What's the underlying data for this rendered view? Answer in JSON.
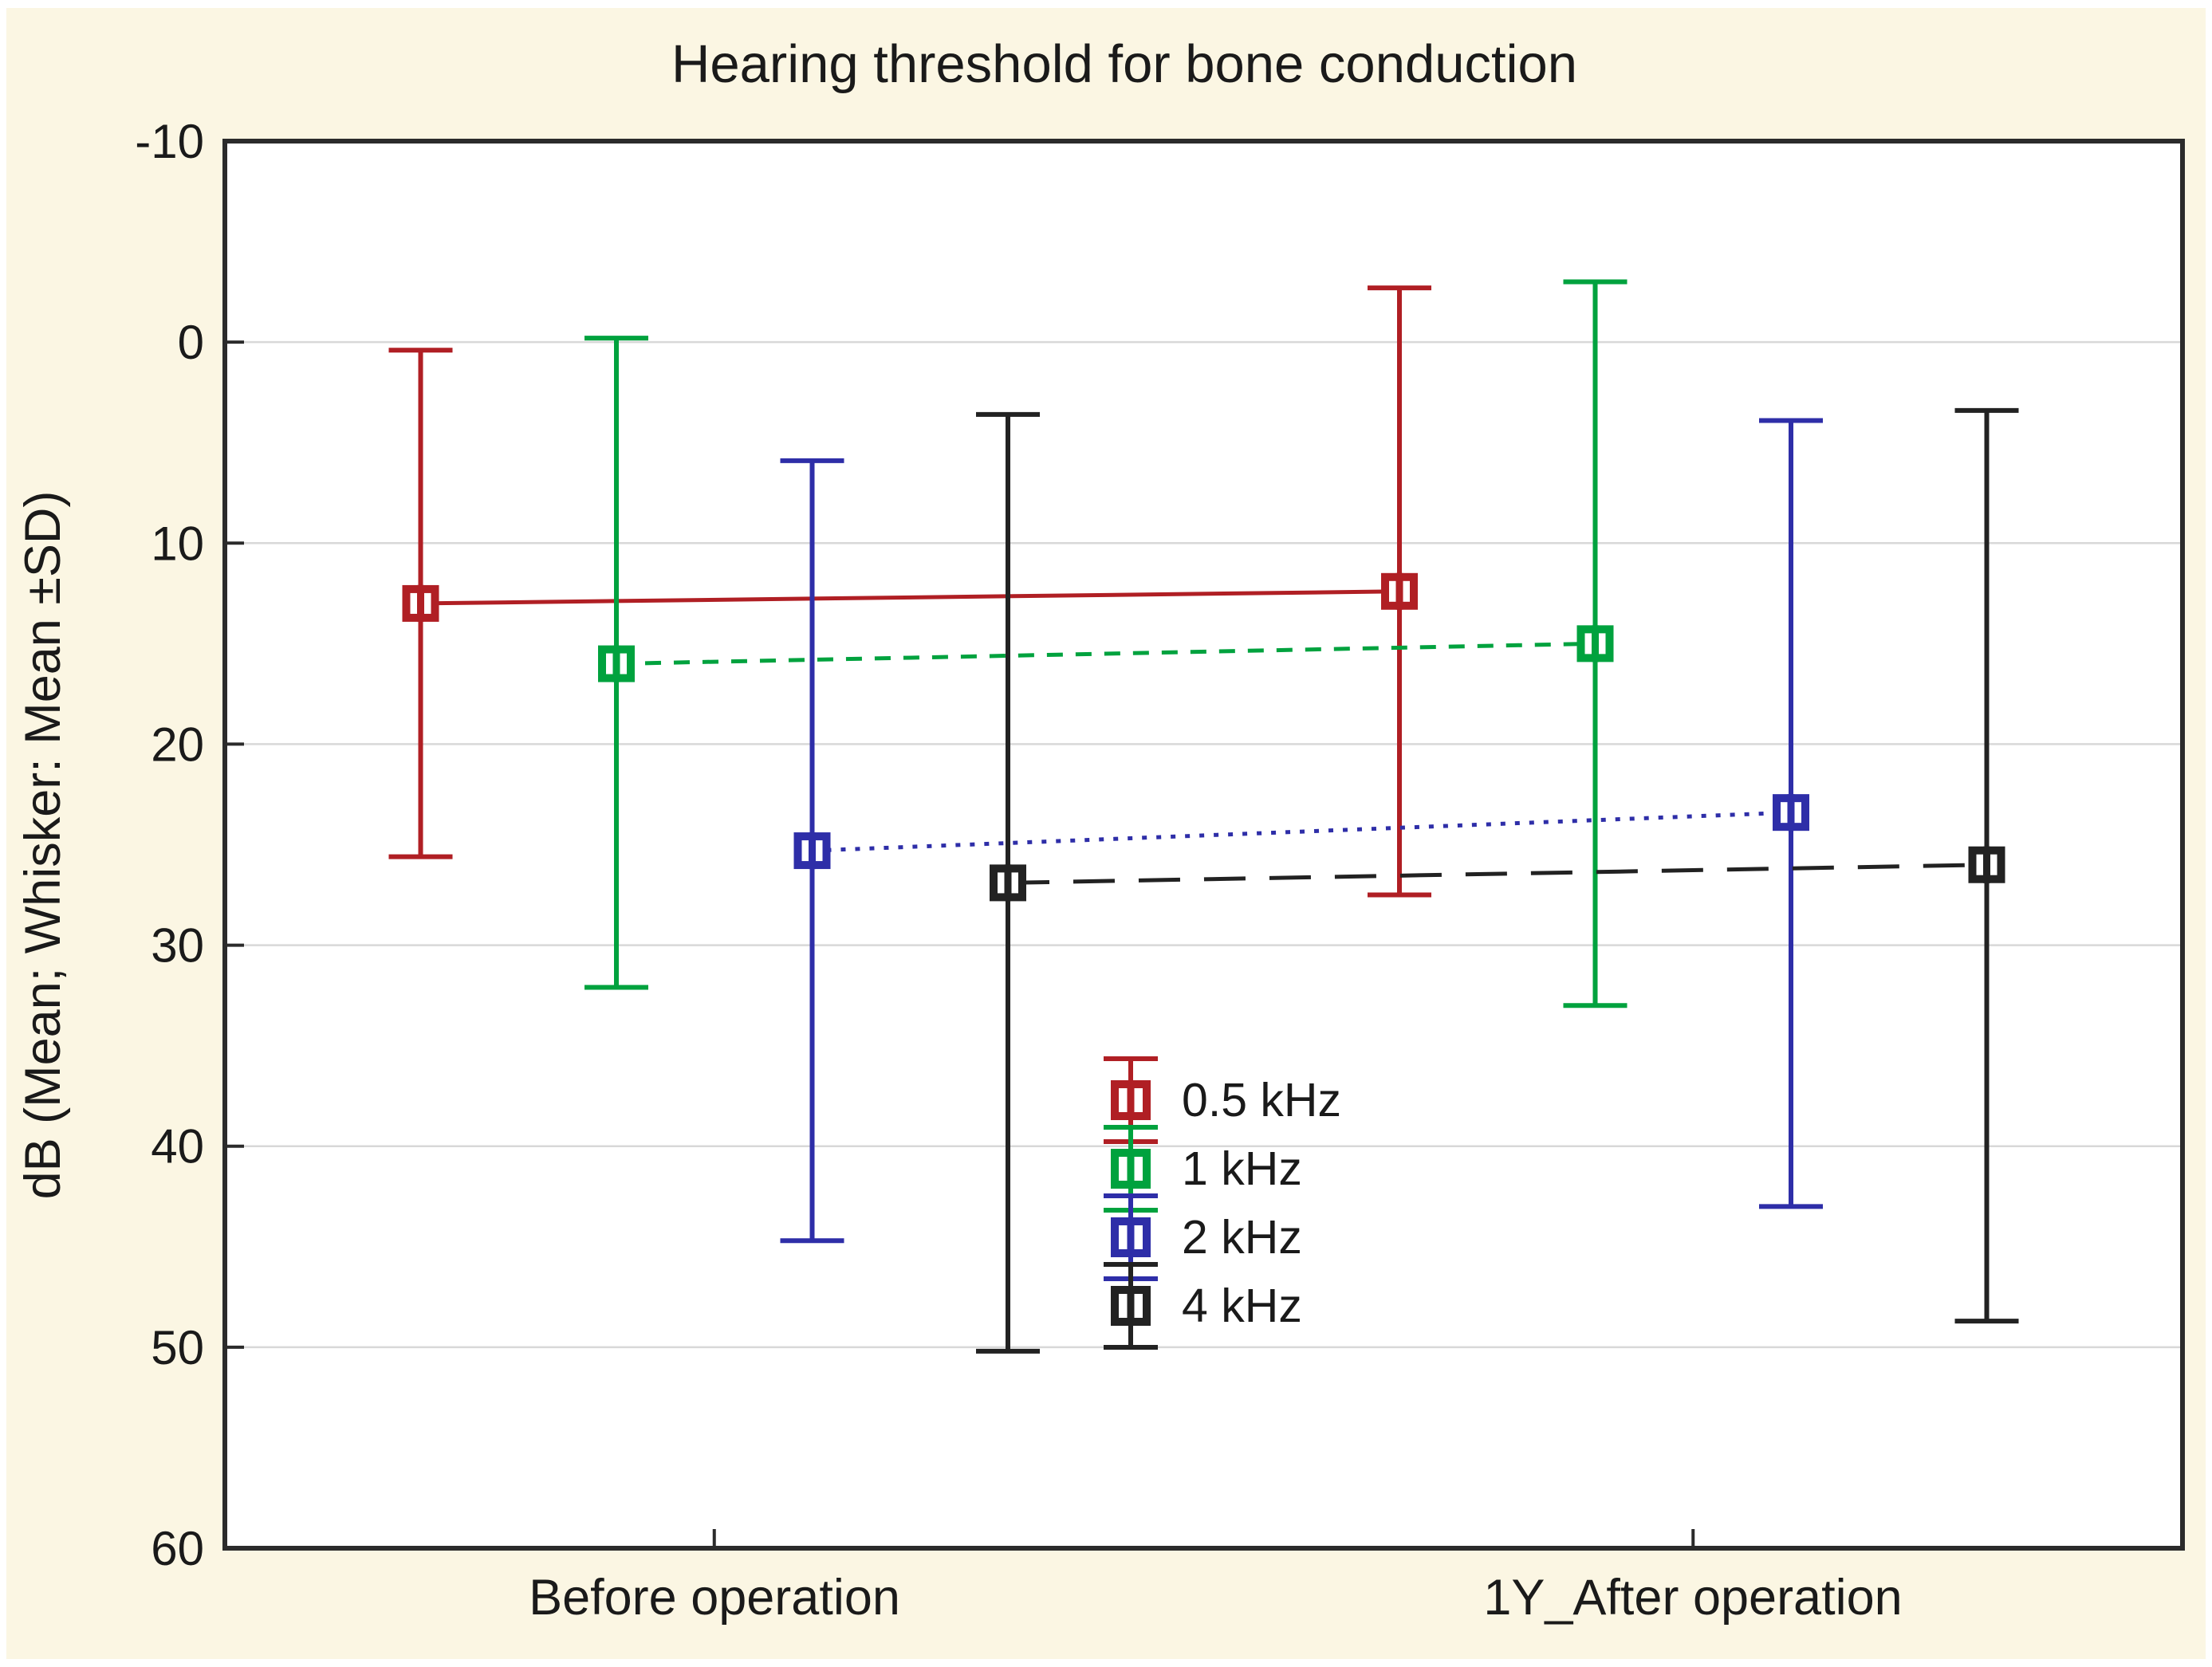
{
  "title": "Hearing threshold for bone conduction",
  "axes": {
    "y_label": "dB (Mean; Whisker: Mean ±SD)",
    "x_label": ""
  },
  "chart_data": {
    "type": "line",
    "subtype": "means with error bars (mean ± SD whiskers)",
    "title": "Hearing threshold for bone conduction",
    "ylabel": "dB (Mean; Whisker: Mean ±SD)",
    "categories": [
      "Before operation",
      "1Y_After operation"
    ],
    "ylim": [
      -10,
      60
    ],
    "y_inverted": true,
    "y_ticks": [
      -10,
      0,
      10,
      20,
      30,
      40,
      50,
      60
    ],
    "grid": "horizontal",
    "legend_position": "inside lower-center",
    "series": [
      {
        "name": "0.5 kHz",
        "color": "#b01f24",
        "line_style": "solid",
        "mean": [
          13.0,
          12.4
        ],
        "mean_minus_sd": [
          0.4,
          -2.7
        ],
        "mean_plus_sd": [
          25.6,
          27.5
        ]
      },
      {
        "name": "1 kHz",
        "color": "#00a23e",
        "line_style": "dashed",
        "mean": [
          16.0,
          15.0
        ],
        "mean_minus_sd": [
          -0.2,
          -3.0
        ],
        "mean_plus_sd": [
          32.1,
          33.0
        ]
      },
      {
        "name": "2 kHz",
        "color": "#2e2ea8",
        "line_style": "dotted",
        "mean": [
          25.3,
          23.4
        ],
        "mean_minus_sd": [
          5.9,
          3.9
        ],
        "mean_plus_sd": [
          44.7,
          43.0
        ]
      },
      {
        "name": "4 kHz",
        "color": "#222222",
        "line_style": "long-dash",
        "mean": [
          26.9,
          26.0
        ],
        "mean_minus_sd": [
          3.6,
          3.4
        ],
        "mean_plus_sd": [
          50.2,
          48.7
        ]
      }
    ]
  },
  "colors": {
    "page_background": "#fbf6e3",
    "plot_background": "#ffffff",
    "gridline": "#d8d8d8",
    "axis": "#2b2b2b",
    "text": "#1a1a1a"
  }
}
